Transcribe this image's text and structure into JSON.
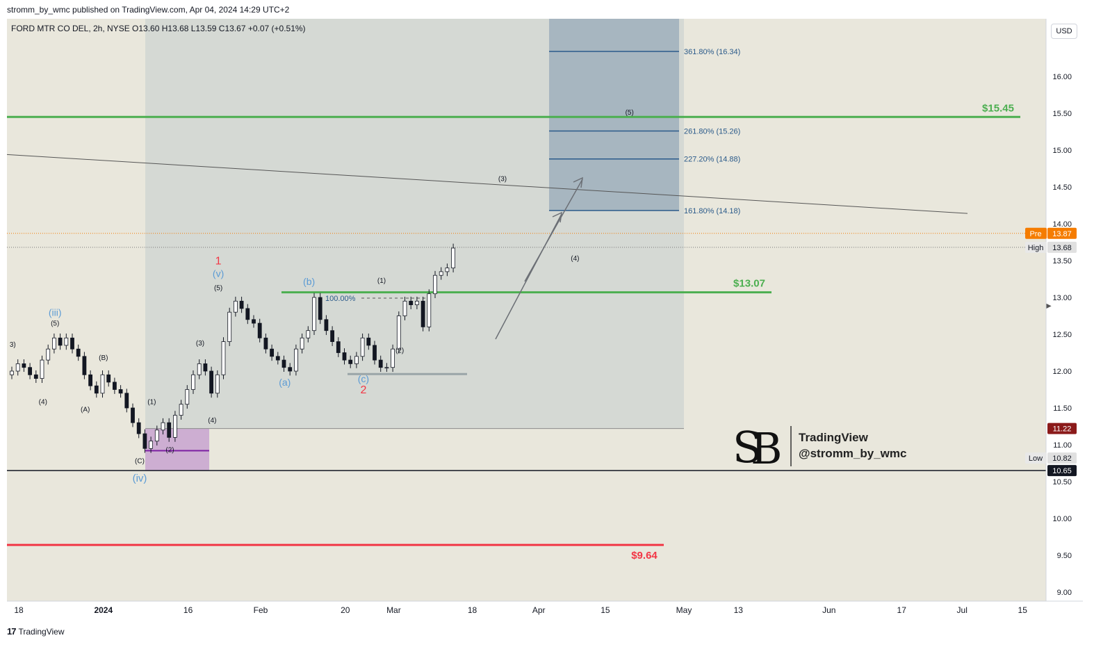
{
  "header": {
    "published": "stromm_by_wmc published on TradingView.com, Apr 04, 2024 14:29 UTC+2"
  },
  "legend": {
    "text": "FORD MTR CO DEL, 2h, NYSE  O13.60  H13.68  L13.59  C13.67  +0.07 (+0.51%)"
  },
  "currency": "USD",
  "footer": {
    "brand": "TradingView"
  },
  "watermark": {
    "line1": "TradingView",
    "line2": "@stromm_by_wmc"
  },
  "colors": {
    "background": "#e9e7dc",
    "zone": "#d5d9d4",
    "target": "#a7b6c0",
    "purple": "#cdaed2",
    "green": "#4caf50",
    "red": "#f23645",
    "blueLabel": "#5b9bd5",
    "fib": "#2a5a8a"
  },
  "chart_data": {
    "type": "candlestick",
    "title": "FORD MTR CO DEL, 2h, NYSE",
    "ylim": [
      9.0,
      16.5
    ],
    "y_ticks": [
      "9.00",
      "9.50",
      "10.00",
      "10.50",
      "11.00",
      "11.50",
      "12.00",
      "12.50",
      "13.00",
      "13.50",
      "14.00",
      "14.50",
      "15.00",
      "15.50",
      "16.00"
    ],
    "x_ticks": [
      {
        "label": "18",
        "i": 0
      },
      {
        "label": "2024",
        "i": 14
      },
      {
        "label": "16",
        "i": 28
      },
      {
        "label": "Feb",
        "i": 40
      },
      {
        "label": "20",
        "i": 54
      },
      {
        "label": "Mar",
        "i": 62
      },
      {
        "label": "18",
        "i": 75
      },
      {
        "label": "Apr",
        "i": 86
      },
      {
        "label": "15",
        "i": 97
      },
      {
        "label": "May",
        "i": 110
      },
      {
        "label": "13",
        "i": 119
      },
      {
        "label": "Jun",
        "i": 134
      },
      {
        "label": "17",
        "i": 146
      },
      {
        "label": "Jul",
        "i": 156
      },
      {
        "label": "15",
        "i": 166
      }
    ],
    "closes": [
      12.0,
      12.1,
      12.05,
      11.95,
      11.9,
      12.15,
      12.3,
      12.45,
      12.35,
      12.45,
      12.3,
      12.2,
      11.95,
      11.8,
      11.7,
      11.95,
      11.85,
      11.75,
      11.7,
      11.5,
      11.3,
      11.15,
      10.95,
      11.05,
      11.2,
      11.3,
      11.1,
      11.4,
      11.55,
      11.75,
      11.95,
      12.1,
      12.0,
      11.7,
      11.95,
      12.4,
      12.8,
      12.95,
      12.85,
      12.7,
      12.65,
      12.45,
      12.3,
      12.2,
      12.15,
      12.05,
      12.0,
      12.3,
      12.45,
      12.55,
      13.0,
      12.7,
      12.55,
      12.4,
      12.25,
      12.15,
      12.1,
      12.2,
      12.45,
      12.35,
      12.15,
      12.05,
      12.05,
      12.3,
      12.75,
      12.95,
      12.9,
      12.95,
      12.6,
      13.05,
      13.3,
      13.35,
      13.4,
      13.67
    ],
    "candle_start_i": 0,
    "levels": [
      {
        "name": "resistance-15-45",
        "price": 15.45,
        "label": "$15.45",
        "color": "#4caf50"
      },
      {
        "name": "support-13-07",
        "price": 13.07,
        "label": "$13.07",
        "color": "#4caf50"
      },
      {
        "name": "stop-9-64",
        "price": 9.64,
        "label": "$9.64",
        "color": "#f23645"
      },
      {
        "name": "low-10-65",
        "price": 10.65,
        "label": "",
        "color": "#131722"
      }
    ],
    "fib_levels": [
      {
        "label": "361.80% (16.34)",
        "price": 16.34
      },
      {
        "label": "261.80% (15.26)",
        "price": 15.26
      },
      {
        "label": "227.20% (14.88)",
        "price": 14.88
      },
      {
        "label": "161.80% (14.18)",
        "price": 14.18
      }
    ],
    "fib_base_label": "100.00%",
    "price_badges": [
      {
        "label": "Pre",
        "value": "13.87",
        "price": 13.87,
        "bg": "#f57c00"
      },
      {
        "label": "High",
        "value": "13.68",
        "price": 13.68,
        "bg": "#e0e0e0"
      },
      {
        "label": "",
        "value": "11.22",
        "price": 11.22,
        "bg": "#8b1a1a"
      },
      {
        "label": "Low",
        "value": "10.82",
        "price": 10.82,
        "bg": "#e0e0e0"
      },
      {
        "label": "",
        "value": "10.65",
        "price": 10.65,
        "bg": "#131722"
      }
    ],
    "wave_labels": [
      {
        "text": "(iii)",
        "i": 6,
        "price": 12.75,
        "color": "#5b9bd5",
        "size": 14
      },
      {
        "text": "(5)",
        "i": 6,
        "price": 12.62,
        "color": "#131722",
        "size": 10
      },
      {
        "text": "(B)",
        "i": 14,
        "price": 12.15,
        "color": "#131722",
        "size": 10
      },
      {
        "text": "(4)",
        "i": 4,
        "price": 11.55,
        "color": "#131722",
        "size": 10
      },
      {
        "text": "(A)",
        "i": 11,
        "price": 11.45,
        "color": "#131722",
        "size": 10
      },
      {
        "text": "(1)",
        "i": 22,
        "price": 11.55,
        "color": "#131722",
        "size": 10
      },
      {
        "text": "(2)",
        "i": 25,
        "price": 10.9,
        "color": "#131722",
        "size": 10
      },
      {
        "text": "(C)",
        "i": 20,
        "price": 10.75,
        "color": "#131722",
        "size": 10
      },
      {
        "text": "(iv)",
        "i": 20,
        "price": 10.5,
        "color": "#5b9bd5",
        "size": 15
      },
      {
        "text": "(3)",
        "i": 30,
        "price": 12.35,
        "color": "#131722",
        "size": 10
      },
      {
        "text": "(4)",
        "i": 32,
        "price": 11.3,
        "color": "#131722",
        "size": 10
      },
      {
        "text": "1",
        "i": 33,
        "price": 13.45,
        "color": "#f23645",
        "size": 16
      },
      {
        "text": "(v)",
        "i": 33,
        "price": 13.28,
        "color": "#5b9bd5",
        "size": 14
      },
      {
        "text": "(5)",
        "i": 33,
        "price": 13.1,
        "color": "#131722",
        "size": 10
      },
      {
        "text": "(b)",
        "i": 48,
        "price": 13.17,
        "color": "#5b9bd5",
        "size": 14
      },
      {
        "text": "(a)",
        "i": 44,
        "price": 11.8,
        "color": "#5b9bd5",
        "size": 14
      },
      {
        "text": "(c)",
        "i": 57,
        "price": 11.85,
        "color": "#5b9bd5",
        "size": 14
      },
      {
        "text": "2",
        "i": 57,
        "price": 11.7,
        "color": "#f23645",
        "size": 16
      },
      {
        "text": "(1)",
        "i": 60,
        "price": 13.2,
        "color": "#131722",
        "size": 10
      },
      {
        "text": "(2)",
        "i": 63,
        "price": 12.25,
        "color": "#131722",
        "size": 10
      },
      {
        "text": "(3)",
        "i": 80,
        "price": 14.58,
        "color": "#131722",
        "size": 10
      },
      {
        "text": "(4)",
        "i": 92,
        "price": 13.5,
        "color": "#131722",
        "size": 10
      },
      {
        "text": "(5)",
        "i": 101,
        "price": 15.48,
        "color": "#131722",
        "size": 10
      },
      {
        "text": "3)",
        "i": -1,
        "price": 12.33,
        "color": "#131722",
        "size": 10
      }
    ]
  }
}
